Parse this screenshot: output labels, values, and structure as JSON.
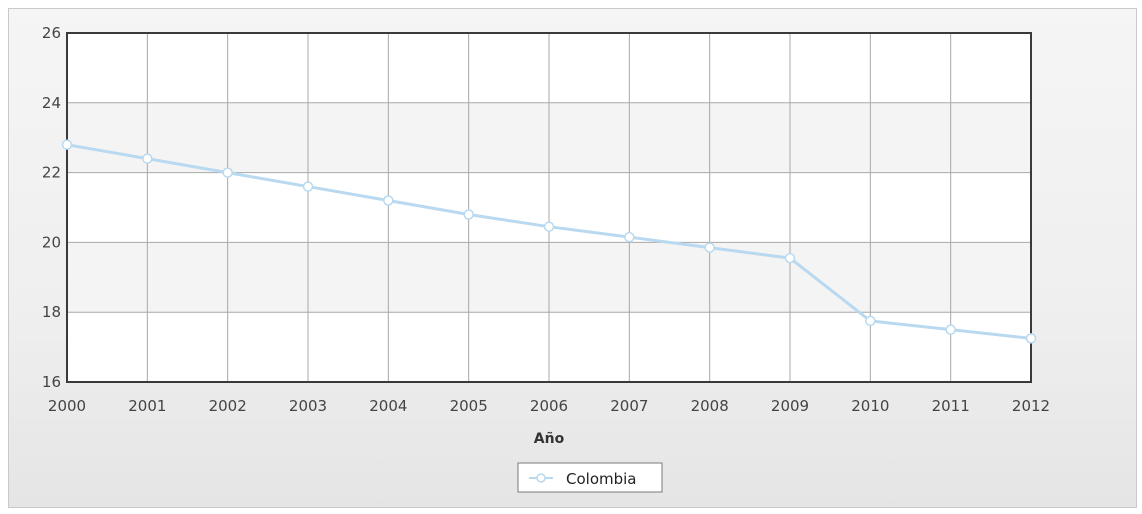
{
  "chart_data": {
    "type": "line",
    "title": "",
    "xlabel": "Año",
    "ylabel": "",
    "x": [
      "2000",
      "2001",
      "2002",
      "2003",
      "2004",
      "2005",
      "2006",
      "2007",
      "2008",
      "2009",
      "2010",
      "2011",
      "2012"
    ],
    "ylim": [
      16,
      26
    ],
    "yticks": [
      16,
      18,
      20,
      22,
      24,
      26
    ],
    "grid": true,
    "legend_position": "bottom-center",
    "series": [
      {
        "name": "Colombia",
        "color": "#b9d9f0",
        "values": [
          22.8,
          22.4,
          22.0,
          21.6,
          21.2,
          20.8,
          20.45,
          20.15,
          19.85,
          19.55,
          17.75,
          17.5,
          17.25
        ]
      }
    ]
  }
}
